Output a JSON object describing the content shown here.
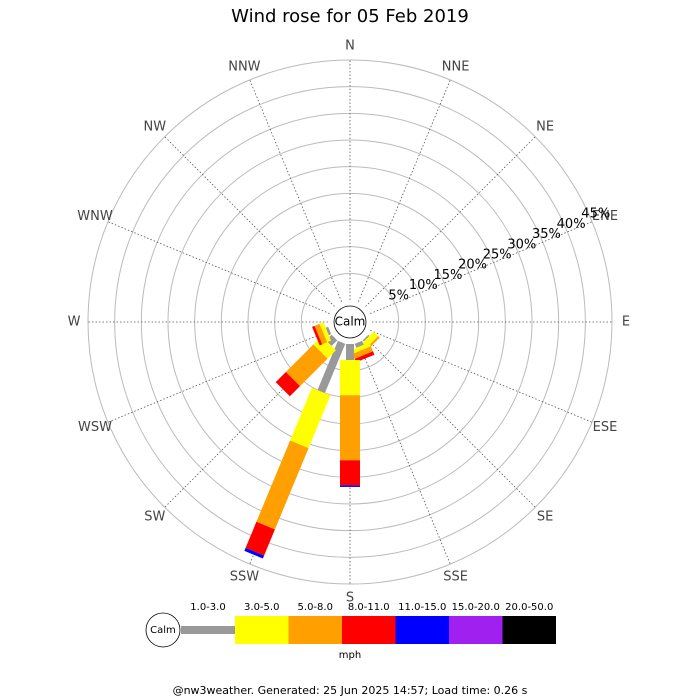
{
  "chart_data": {
    "type": "windrose",
    "title": "Wind rose for 05 Feb 2019",
    "categories": [
      "N",
      "NNE",
      "NE",
      "ENE",
      "E",
      "ESE",
      "SE",
      "SSE",
      "S",
      "SSW",
      "SW",
      "WSW",
      "W",
      "WNW",
      "NW",
      "NNW"
    ],
    "calm_label": "Calm",
    "series": [
      {
        "name": "1.0-3.0",
        "color": "#999999",
        "values": [
          0,
          0,
          0,
          0,
          0,
          0,
          0.3,
          0.8,
          3,
          10,
          1.5,
          0.5,
          0,
          0,
          0,
          0
        ]
      },
      {
        "name": "3.0-5.0",
        "color": "#ffff00",
        "values": [
          0,
          0,
          0,
          0,
          0,
          0,
          1.2,
          0.8,
          6.6,
          10.7,
          2.2,
          0.8,
          0,
          0,
          0,
          0
        ]
      },
      {
        "name": "5.0-8.0",
        "color": "#ffa000",
        "values": [
          0,
          0,
          0,
          0,
          0,
          0,
          0.4,
          1,
          12.2,
          16.5,
          7.3,
          1,
          0,
          0,
          0,
          0
        ]
      },
      {
        "name": "8.0-11.0",
        "color": "#ff0000",
        "values": [
          0,
          0,
          0,
          0,
          0,
          0,
          0,
          0.7,
          4.7,
          5.3,
          2.7,
          0.5,
          0,
          0,
          0,
          0
        ]
      },
      {
        "name": "11.0-15.0",
        "color": "#0000ff",
        "values": [
          0,
          0,
          0,
          0,
          0,
          0,
          0,
          0,
          0.3,
          0.6,
          0,
          0,
          0,
          0,
          0,
          0
        ]
      },
      {
        "name": "15.0-20.0",
        "color": "#a020f0",
        "values": [
          0,
          0,
          0,
          0,
          0,
          0,
          0,
          0,
          0,
          0,
          0,
          0,
          0,
          0,
          0,
          0
        ]
      },
      {
        "name": "20.0-50.0",
        "color": "#000000",
        "values": [
          0,
          0,
          0,
          0,
          0,
          0,
          0,
          0,
          0,
          0,
          0,
          0,
          0,
          0,
          0,
          0
        ]
      }
    ],
    "rlim": [
      0,
      45
    ],
    "rticks": [
      {
        "value": 5,
        "label": "5%"
      },
      {
        "value": 10,
        "label": "10%"
      },
      {
        "value": 15,
        "label": "15%"
      },
      {
        "value": 20,
        "label": "20%"
      },
      {
        "value": 25,
        "label": "25%"
      },
      {
        "value": 30,
        "label": "30%"
      },
      {
        "value": 35,
        "label": "35%"
      },
      {
        "value": 40,
        "label": "40%"
      },
      {
        "value": 45,
        "label": "45%"
      }
    ],
    "legend_unit": "mph",
    "footer": "@nw3weather. Generated: 25 Jun 2025 14:57; Load time: 0.26 s"
  }
}
